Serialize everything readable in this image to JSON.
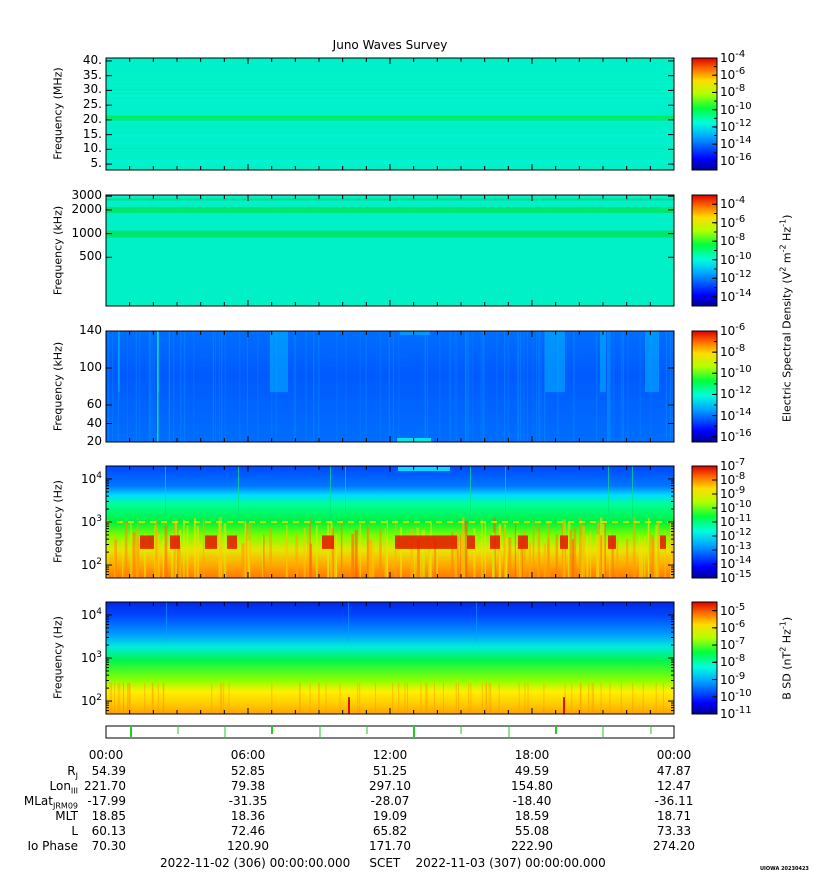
{
  "chart_data": [
    {
      "type": "heatmap",
      "title": "Juno Waves Survey",
      "ylabel": "Frequency (MHz)",
      "y_scale": "linear",
      "ylim": [
        3.0,
        41.0
      ],
      "yticks": [
        5,
        10,
        15,
        20,
        25,
        30,
        35,
        40
      ],
      "ytick_labels": [
        "5.",
        "10.",
        "15.",
        "20.",
        "25.",
        "30.",
        "35.",
        "40."
      ],
      "bands": [
        {
          "freq_mhz": 20.5,
          "level": "-11"
        },
        {
          "freq_mhz": 30,
          "level": "-12.5"
        }
      ],
      "background_level": "-13",
      "colorbar": {
        "exponents": [
          "-4",
          "-6",
          "-8",
          "-10",
          "-12",
          "-14",
          "-16"
        ],
        "range_exp": [
          -17,
          -4
        ]
      }
    },
    {
      "type": "heatmap",
      "ylabel": "Frequency (kHz)",
      "y_scale": "log",
      "ylim": [
        120,
        3100
      ],
      "yticks": [
        500,
        1000,
        2000,
        3000
      ],
      "ytick_labels": [
        "500",
        "1000",
        "2000",
        "3000"
      ],
      "bands": [
        {
          "freq_khz": 1000,
          "level": "-11"
        },
        {
          "freq_khz": 2000,
          "level": "-11"
        }
      ],
      "background_level": "-12.5",
      "colorbar": {
        "exponents": [
          "-4",
          "-6",
          "-8",
          "-10",
          "-12",
          "-14"
        ],
        "range_exp": [
          -15,
          -3
        ]
      }
    },
    {
      "type": "heatmap",
      "ylabel": "Frequency (kHz)",
      "y_scale": "linear",
      "ylim": [
        20,
        140
      ],
      "yticks": [
        20,
        40,
        60,
        100,
        140
      ],
      "ytick_labels": [
        "20",
        "40",
        "60",
        "100",
        "140"
      ],
      "background_level": "-14.5",
      "colorbar": {
        "exponents": [
          "-6",
          "-8",
          "-10",
          "-12",
          "-14",
          "-16"
        ],
        "range_exp": [
          -16.5,
          -6
        ]
      }
    },
    {
      "type": "heatmap",
      "ylabel": "Frequency (Hz)",
      "y_scale": "log",
      "ylim": [
        50,
        20000
      ],
      "ytick_labels": [
        {
          "base": "10",
          "exp": "4"
        },
        {
          "base": "10",
          "exp": "3"
        },
        {
          "base": "10",
          "exp": "2"
        }
      ],
      "ytick_values": [
        10000,
        1000,
        100
      ],
      "colorbar": {
        "exponents": [
          "-7",
          "-8",
          "-9",
          "-10",
          "-11",
          "-12",
          "-13",
          "-14",
          "-15"
        ],
        "range_exp": [
          -15,
          -7
        ]
      }
    },
    {
      "type": "heatmap",
      "ylabel": "Frequency (Hz)",
      "y_scale": "log",
      "ylim": [
        50,
        20000
      ],
      "ytick_labels": [
        {
          "base": "10",
          "exp": "4"
        },
        {
          "base": "10",
          "exp": "3"
        },
        {
          "base": "10",
          "exp": "2"
        }
      ],
      "ytick_values": [
        10000,
        1000,
        100
      ],
      "colorbar": {
        "exponents": [
          "-5",
          "-6",
          "-7",
          "-8",
          "-9",
          "-10",
          "-11"
        ],
        "range_exp": [
          -11,
          -4.5
        ]
      }
    }
  ],
  "colorbar_labels": {
    "electric": {
      "text": "Electric Spectral Density (V",
      "sup1": "2",
      "mid": " m",
      "sup2": "-2",
      "mid2": " Hz",
      "sup3": "-1",
      "end": ")"
    },
    "magnetic": {
      "text": "B SD (nT",
      "sup1": "2",
      "mid": " Hz",
      "sup2": "-1",
      "end": ")"
    }
  },
  "colorbar_base": "10",
  "ephemeris": {
    "time_labels": [
      "00:00",
      "06:00",
      "12:00",
      "18:00",
      "00:00"
    ],
    "rows": [
      {
        "label": "R",
        "sub": "J",
        "values": [
          "54.39",
          "52.85",
          "51.25",
          "49.59",
          "47.87"
        ]
      },
      {
        "label": "Lon",
        "sub": "III",
        "values": [
          "221.70",
          "79.38",
          "297.10",
          "154.80",
          "12.47"
        ]
      },
      {
        "label": "MLat",
        "sub": "JRM09",
        "values": [
          "-17.99",
          "-31.35",
          "-28.07",
          "-18.40",
          "-36.11"
        ]
      },
      {
        "label": "MLT",
        "sub": "",
        "values": [
          "18.85",
          "18.36",
          "19.09",
          "18.59",
          "18.71"
        ]
      },
      {
        "label": "L",
        "sub": "",
        "values": [
          "60.13",
          "72.46",
          "65.82",
          "55.08",
          "73.33"
        ]
      },
      {
        "label": "Io Phase",
        "sub": "",
        "values": [
          "70.30",
          "120.90",
          "171.70",
          "222.90",
          "274.20"
        ]
      }
    ]
  },
  "footer": {
    "start": "2022-11-02 (306) 00:00:00.000",
    "label": "SCET",
    "end": "2022-11-03 (307) 00:00:00.000"
  },
  "stamp": "UIOWA 20230423",
  "colors": {
    "perijove_marker": "#22cc22",
    "frame": "#000000"
  }
}
